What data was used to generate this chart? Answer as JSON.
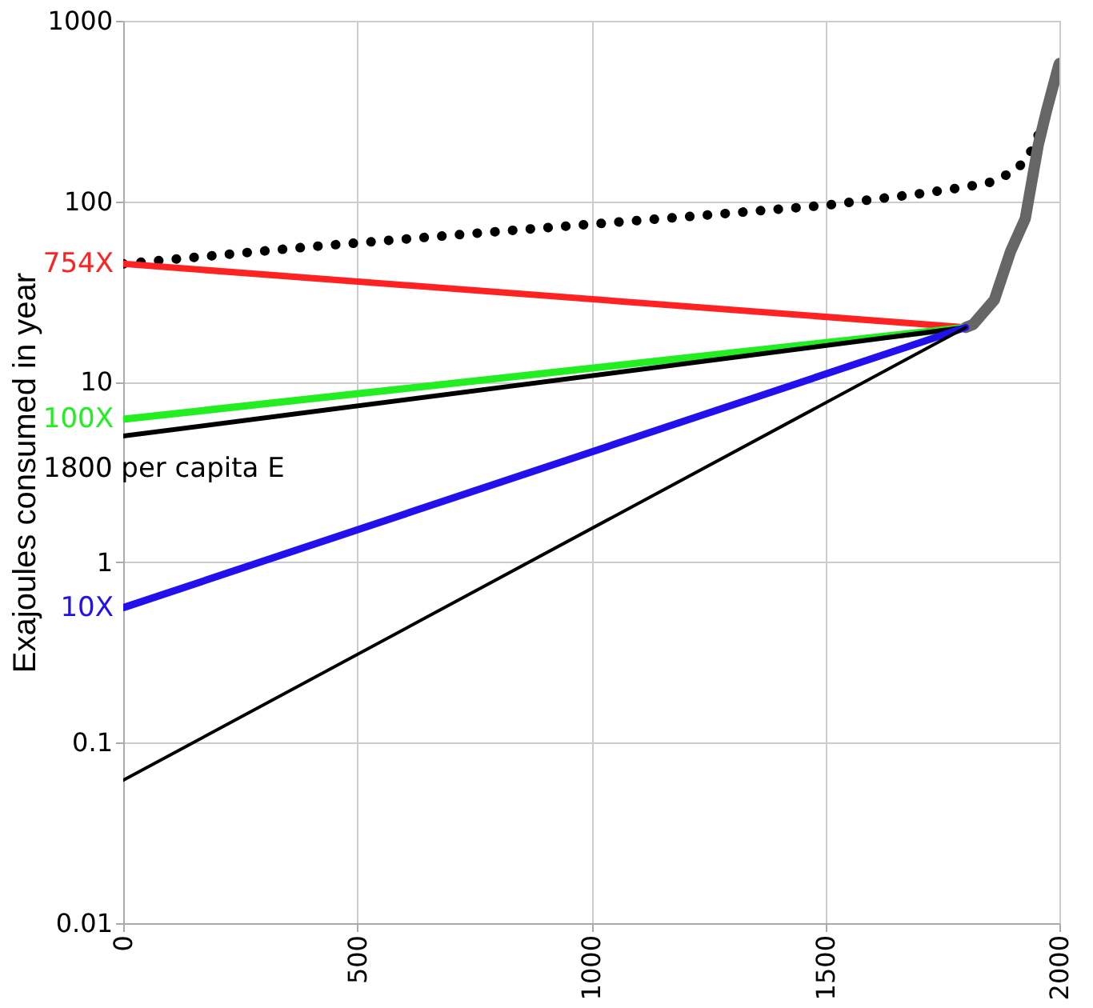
{
  "chart_data": {
    "type": "line",
    "ylabel": "Exajoules consumed in year",
    "log": "y",
    "grid": true,
    "xlim": [
      0,
      2000
    ],
    "xticks": [
      0,
      500,
      1000,
      1500,
      2000
    ],
    "ylim": [
      0.01,
      1000
    ],
    "yticks": [
      0.01,
      0.1,
      1,
      10,
      100,
      1000
    ],
    "series": [
      {
        "color": "#000000",
        "line_style": "dotted",
        "x": [
          0,
          400,
          800,
          1200,
          1500,
          1700,
          1800,
          1850,
          1900,
          1930,
          1950,
          1970,
          1983
        ],
        "values": [
          45,
          56,
          68,
          82,
          95,
          110,
          120,
          127,
          145,
          170,
          215,
          300,
          347
        ]
      },
      {
        "color": "#666666",
        "line_style": "solid",
        "x": [
          1800,
          1816,
          1861,
          1896,
          1927,
          1955,
          1972,
          1997,
          2000
        ],
        "values": [
          20,
          20.8,
          28.4,
          53,
          80,
          206,
          313,
          548,
          580
        ]
      },
      {
        "name": "754X",
        "color": "#ff2222",
        "line_style": "solid",
        "x": [
          0,
          1800
        ],
        "values": [
          45,
          20
        ]
      },
      {
        "name": "100X",
        "color": "#22ee22",
        "line_style": "solid",
        "x": [
          0,
          1800
        ],
        "values": [
          6.2,
          20
        ]
      },
      {
        "color": "#000000",
        "line_style": "solid",
        "x": [
          0,
          1800
        ],
        "values": [
          5,
          20
        ]
      },
      {
        "name": "10X",
        "color": "#2211ee",
        "line_style": "solid",
        "x": [
          0,
          1800
        ],
        "values": [
          0.56,
          20
        ]
      },
      {
        "color": "#000000",
        "line_style": "solid",
        "x": [
          0,
          1800
        ],
        "values": [
          0.062,
          20
        ]
      }
    ],
    "annotations": [
      "1800 per capita E"
    ]
  }
}
